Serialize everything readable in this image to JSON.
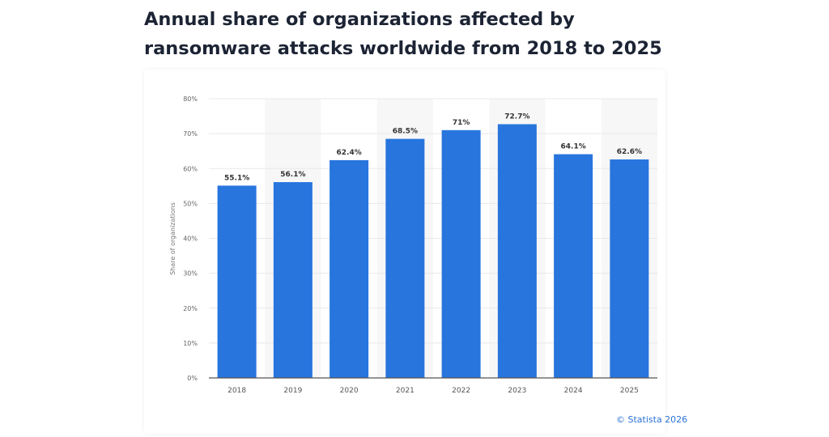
{
  "title": "Annual share of organizations affected by ransomware attacks worldwide from 2018 to 2025",
  "credit": "© Statista 2026",
  "colors": {
    "bar": "#2775dd",
    "title": "#1c2434",
    "credit": "#2a73d6"
  },
  "chart_data": {
    "type": "bar",
    "title": "Annual share of organizations affected by ransomware attacks worldwide from 2018 to 2025",
    "categories": [
      "2018",
      "2019",
      "2020",
      "2021",
      "2022",
      "2023",
      "2024",
      "2025"
    ],
    "values": [
      55.1,
      56.1,
      62.4,
      68.5,
      71,
      72.7,
      64.1,
      62.6
    ],
    "data_labels": [
      "55.1%",
      "56.1%",
      "62.4%",
      "68.5%",
      "71%",
      "72.7%",
      "64.1%",
      "62.6%"
    ],
    "xlabel": "",
    "ylabel": "Share of organizations",
    "ylim": [
      0,
      80
    ],
    "yticks": [
      "0%",
      "10%",
      "20%",
      "30%",
      "40%",
      "50%",
      "60%",
      "70%",
      "80%"
    ],
    "grid": true,
    "legend": "none"
  }
}
